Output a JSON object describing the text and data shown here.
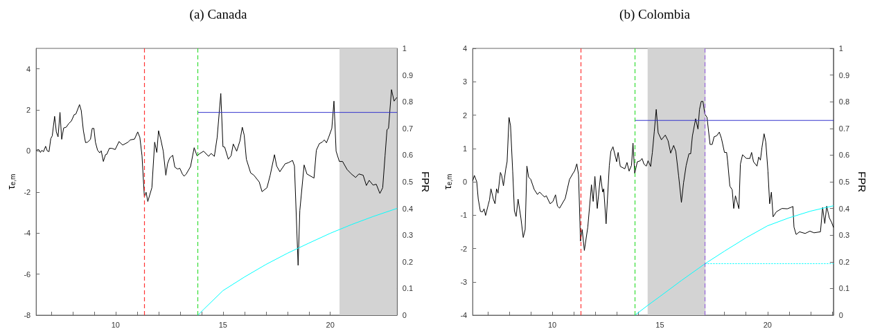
{
  "chart_data": [
    {
      "type": "line",
      "title": "(a) Canada",
      "ylabel": "τ$_{e,m}$",
      "y2label": "FPR",
      "marker": "none",
      "line_style": "solid",
      "grid": false,
      "xlim": [
        6.3,
        23.1
      ],
      "xticks": [
        {
          "value": 7,
          "label": null
        },
        {
          "value": 8,
          "label": null
        },
        {
          "value": 9,
          "label": null
        },
        10,
        {
          "value": 11,
          "label": null
        },
        {
          "value": 12,
          "label": null
        },
        {
          "value": 13,
          "label": null
        },
        {
          "value": 14,
          "label": null
        },
        15,
        {
          "value": 16,
          "label": null
        },
        {
          "value": 17,
          "label": null
        },
        {
          "value": 18,
          "label": null
        },
        {
          "value": 19,
          "label": null
        },
        20,
        {
          "value": 21,
          "label": null
        },
        {
          "value": 22,
          "label": null
        },
        {
          "value": 23,
          "label": null
        }
      ],
      "ylim": [
        -8,
        5
      ],
      "yticks": [
        -8,
        -6,
        -4,
        -2,
        0,
        2,
        4
      ],
      "y2lim": [
        0,
        1
      ],
      "y2ticks": [
        0,
        0.1,
        0.2,
        0.3,
        0.4,
        0.5,
        0.6,
        0.7,
        0.8,
        0.9,
        1
      ],
      "bands": [
        {
          "axis": "x",
          "from": 20.43,
          "to": 23.1,
          "label": null,
          "color": "#d3d3d3"
        }
      ],
      "ref_lines": [
        {
          "axis": "x",
          "value": 11.34,
          "label": null,
          "color": "#ff3333",
          "line_style": "dashed"
        },
        {
          "axis": "x",
          "value": 13.83,
          "label": null,
          "color": "#33dd33",
          "line_style": "dashed"
        }
      ],
      "series": [
        {
          "color": "#000000",
          "x": [
            6.32,
            6.42,
            6.5,
            6.57,
            6.64,
            6.74,
            6.82,
            6.9,
            6.98,
            7.05,
            7.16,
            7.24,
            7.32,
            7.41,
            7.49,
            7.58,
            7.7,
            7.82,
            7.94,
            8.07,
            8.15,
            8.32,
            8.4,
            8.5,
            8.6,
            8.7,
            8.83,
            8.91,
            8.99,
            9.06,
            9.16,
            9.26,
            9.33,
            9.43,
            9.53,
            9.59,
            9.71,
            9.83,
            9.98,
            10.16,
            10.33,
            10.58,
            10.68,
            10.88,
            11.03,
            11.13,
            11.23,
            11.34,
            11.42,
            11.5,
            11.69,
            11.82,
            11.92,
            12.0,
            12.11,
            12.22,
            12.34,
            12.42,
            12.52,
            12.66,
            12.76,
            12.89,
            12.99,
            13.11,
            13.19,
            13.29,
            13.49,
            13.66,
            13.79,
            13.93,
            14.1,
            14.33,
            14.45,
            14.6,
            14.73,
            14.9,
            15.0,
            15.08,
            15.25,
            15.38,
            15.48,
            15.64,
            15.79,
            15.9,
            15.99,
            16.09,
            16.29,
            16.44,
            16.69,
            16.82,
            17.05,
            17.2,
            17.4,
            17.5,
            17.65,
            17.9,
            18.05,
            18.24,
            18.33,
            18.5,
            18.58,
            18.78,
            18.91,
            19.24,
            19.35,
            19.49,
            19.62,
            19.72,
            19.82,
            19.92,
            20.07,
            20.17,
            20.27,
            20.42,
            20.57,
            20.78,
            20.98,
            21.18,
            21.33,
            21.53,
            21.68,
            21.81,
            21.99,
            22.14,
            22.31,
            22.44,
            22.55,
            22.64,
            22.71,
            22.85,
            22.97,
            23.09
          ],
          "values": [
            0.04,
            0.07,
            -0.07,
            0.04,
            -0.04,
            0.23,
            0,
            -0.03,
            0.6,
            0.74,
            1.69,
            0.93,
            0.69,
            1.88,
            0.57,
            1.12,
            1.16,
            1.34,
            1.46,
            1.77,
            1.8,
            2.26,
            1.97,
            0.99,
            0.41,
            0.43,
            0.57,
            1.1,
            1.1,
            0.43,
            0.04,
            -0.09,
            0.01,
            -0.51,
            -0.18,
            -0.16,
            0.13,
            0.13,
            0.07,
            0.46,
            0.29,
            0.43,
            0.54,
            0.58,
            0.93,
            0.66,
            -0.23,
            -2.23,
            -2.01,
            -2.46,
            -1.79,
            0.43,
            -0.07,
            0.99,
            0.54,
            -0.01,
            -1.18,
            -0.62,
            -0.34,
            -0.21,
            -0.79,
            -0.88,
            -0.84,
            -1.12,
            -1.23,
            -1.12,
            -0.76,
            0.16,
            -0.23,
            -0.12,
            -0.01,
            -0.26,
            -0.12,
            -0.26,
            0.66,
            2.8,
            0.21,
            0.19,
            -0.4,
            -0.23,
            0.34,
            -0.01,
            0.49,
            1.16,
            0.77,
            -0.4,
            -1.07,
            -1.18,
            -1.51,
            -1.98,
            -1.79,
            -1.18,
            -0.18,
            -0.73,
            -1.01,
            -0.62,
            -0.57,
            -0.46,
            -0.73,
            -5.57,
            -2.9,
            -0.68,
            -1.12,
            -1.32,
            0.04,
            0.36,
            0.43,
            0.54,
            0.4,
            0.66,
            1.1,
            2.43,
            -0.01,
            -0.51,
            -0.51,
            -0.9,
            -1.12,
            -1.29,
            -1.12,
            -1.18,
            -1.68,
            -1.43,
            -1.66,
            -1.62,
            -2.07,
            -1.79,
            -0.23,
            1.04,
            1.1,
            2.99,
            2.43,
            2.6
          ]
        },
        {
          "color": "#00ffff",
          "axis": "y2",
          "x": [
            13.83,
            14.13,
            15,
            16,
            17,
            18,
            19,
            20,
            21,
            22,
            23.1
          ],
          "values": [
            0,
            0.024,
            0.092,
            0.143,
            0.19,
            0.232,
            0.27,
            0.307,
            0.34,
            0.37,
            0.4
          ]
        },
        {
          "color": "#3333cc",
          "axis": "y2",
          "x": [
            13.83,
            23.1
          ],
          "values": [
            0.76,
            0.76
          ]
        }
      ]
    },
    {
      "type": "line",
      "title": "(b) Colombia",
      "ylabel": "τ$_{e,m}$",
      "y2label": "FPR",
      "marker": "none",
      "line_style": "solid",
      "grid": false,
      "xlim": [
        6.3,
        23.06
      ],
      "xticks": [
        {
          "value": 7,
          "label": null
        },
        {
          "value": 8,
          "label": null
        },
        {
          "value": 9,
          "label": null
        },
        10,
        {
          "value": 11,
          "label": null
        },
        {
          "value": 12,
          "label": null
        },
        {
          "value": 13,
          "label": null
        },
        {
          "value": 14,
          "label": null
        },
        15,
        {
          "value": 16,
          "label": null
        },
        {
          "value": 17,
          "label": null
        },
        {
          "value": 18,
          "label": null
        },
        {
          "value": 19,
          "label": null
        },
        20,
        {
          "value": 21,
          "label": null
        },
        {
          "value": 22,
          "label": null
        },
        {
          "value": 23,
          "label": null
        }
      ],
      "ylim": [
        -4,
        4
      ],
      "yticks": [
        -4,
        -3,
        -2,
        -1,
        0,
        1,
        2,
        3,
        4
      ],
      "y2lim": [
        0,
        1
      ],
      "y2ticks": [
        0,
        0.1,
        0.2,
        0.3,
        0.4,
        0.5,
        0.6,
        0.7,
        0.8,
        0.9,
        1
      ],
      "bands": [
        {
          "axis": "x",
          "from": 14.43,
          "to": 17.12,
          "label": null,
          "color": "#d3d3d3"
        }
      ],
      "ref_lines": [
        {
          "axis": "x",
          "value": 11.33,
          "label": null,
          "color": "#ff3333",
          "line_style": "dashed"
        },
        {
          "axis": "x",
          "value": 13.84,
          "label": null,
          "color": "#33dd33",
          "line_style": "dashed"
        },
        {
          "axis": "x",
          "value": 17.08,
          "label": null,
          "color": "#9966dd",
          "line_style": "dashed"
        }
      ],
      "series": [
        {
          "color": "#000000",
          "x": [
            6.31,
            6.38,
            6.49,
            6.56,
            6.66,
            6.76,
            6.83,
            6.9,
            7.02,
            7.08,
            7.15,
            7.26,
            7.34,
            7.41,
            7.48,
            7.59,
            7.65,
            7.73,
            7.84,
            7.9,
            7.99,
            8.06,
            8.16,
            8.24,
            8.32,
            8.41,
            8.54,
            8.65,
            8.74,
            8.82,
            8.9,
            9.0,
            9.16,
            9.31,
            9.41,
            9.52,
            9.64,
            9.72,
            9.9,
            10.03,
            10.15,
            10.24,
            10.34,
            10.6,
            10.8,
            10.96,
            11.04,
            11.14,
            11.22,
            11.31,
            11.39,
            11.49,
            11.65,
            11.82,
            11.9,
            11.98,
            12.09,
            12.24,
            12.34,
            12.39,
            12.5,
            12.65,
            12.72,
            12.82,
            12.99,
            13.06,
            13.16,
            13.37,
            13.47,
            13.57,
            13.68,
            13.75,
            13.83,
            13.95,
            14.09,
            14.17,
            14.26,
            14.37,
            14.45,
            14.57,
            14.65,
            14.74,
            14.83,
            14.92,
            15.07,
            15.25,
            15.38,
            15.5,
            15.64,
            15.74,
            15.87,
            16.0,
            16.1,
            16.22,
            16.35,
            16.43,
            16.51,
            16.66,
            16.77,
            16.84,
            16.92,
            17.0,
            17.09,
            17.19,
            17.33,
            17.43,
            17.52,
            17.64,
            17.76,
            17.86,
            18.0,
            18.1,
            18.15,
            18.25,
            18.36,
            18.43,
            18.51,
            18.67,
            18.74,
            18.84,
            19.02,
            19.18,
            19.26,
            19.35,
            19.51,
            19.59,
            19.67,
            19.74,
            19.84,
            19.92,
            20.02,
            20.1,
            20.18,
            20.26,
            20.41,
            20.67,
            20.92,
            21.08,
            21.18,
            21.23,
            21.33,
            21.49,
            21.75,
            21.97,
            22.16,
            22.46,
            22.56,
            22.66,
            22.75,
            22.87,
            22.98,
            23.06
          ],
          "values": [
            0.04,
            0.19,
            0,
            -0.52,
            -0.89,
            -0.9,
            -0.81,
            -1.01,
            -0.7,
            -0.55,
            -0.21,
            -0.52,
            -0.66,
            -0.21,
            -0.34,
            0.28,
            0.18,
            -0.12,
            0.39,
            0.6,
            1.93,
            1.68,
            0.32,
            -0.87,
            -1.04,
            -0.52,
            -1.08,
            -1.67,
            -1.43,
            0.47,
            0.14,
            0.07,
            -0.23,
            -0.38,
            -0.31,
            -0.38,
            -0.46,
            -0.42,
            -0.66,
            -0.59,
            -0.39,
            -0.73,
            -0.79,
            -0.5,
            0.07,
            0.25,
            0.33,
            0.54,
            0.21,
            -1.78,
            -1.43,
            -2.06,
            -1.36,
            -0.09,
            -0.59,
            0.16,
            -0.8,
            0.19,
            -0.31,
            -0.21,
            -1.26,
            0.49,
            0.91,
            1.05,
            0.6,
            0.88,
            0.46,
            0.39,
            0.58,
            0.32,
            0.49,
            1.16,
            0.25,
            0.6,
            0.63,
            0.7,
            0.53,
            0.47,
            0.63,
            0.46,
            0.88,
            1.51,
            2.17,
            1.47,
            1.26,
            1.4,
            1.23,
            0.86,
            1.09,
            0.91,
            0.18,
            -0.62,
            -0.03,
            0.49,
            0.84,
            0.84,
            1.37,
            1.89,
            1.58,
            2.17,
            2.41,
            2.41,
            2.03,
            1.93,
            1.12,
            1.12,
            1.35,
            1.38,
            1.49,
            1.3,
            0.88,
            0.88,
            0.6,
            -0.13,
            -0.24,
            -0.8,
            -0.42,
            -0.81,
            0.53,
            0.81,
            0.7,
            0.7,
            0.88,
            0.6,
            0.47,
            0.74,
            0.65,
            1.02,
            1.44,
            1.19,
            0.32,
            -0.66,
            -0.31,
            -1.05,
            -0.9,
            -0.8,
            -0.81,
            -0.77,
            -0.74,
            -1.36,
            -1.58,
            -1.5,
            -1.55,
            -1.48,
            -1.53,
            -1.5,
            -0.77,
            -1.25,
            -0.73,
            -1.08,
            -1.22,
            -1.36
          ]
        },
        {
          "color": "#00ffff",
          "axis": "y2",
          "x": [
            13.84,
            14.44,
            15,
            16,
            17.1,
            18,
            19,
            20,
            21,
            22,
            23.06
          ],
          "values": [
            0,
            0.037,
            0.07,
            0.13,
            0.193,
            0.24,
            0.29,
            0.335,
            0.365,
            0.39,
            0.41
          ]
        },
        {
          "color": "#3333cc",
          "axis": "y2",
          "x": [
            13.84,
            23.06
          ],
          "values": [
            0.73,
            0.73
          ]
        },
        {
          "color": "#00ffff",
          "axis": "y2",
          "line_style": "dotted",
          "x": [
            17.1,
            23.06
          ],
          "values": [
            0.193,
            0.193
          ]
        }
      ]
    }
  ]
}
